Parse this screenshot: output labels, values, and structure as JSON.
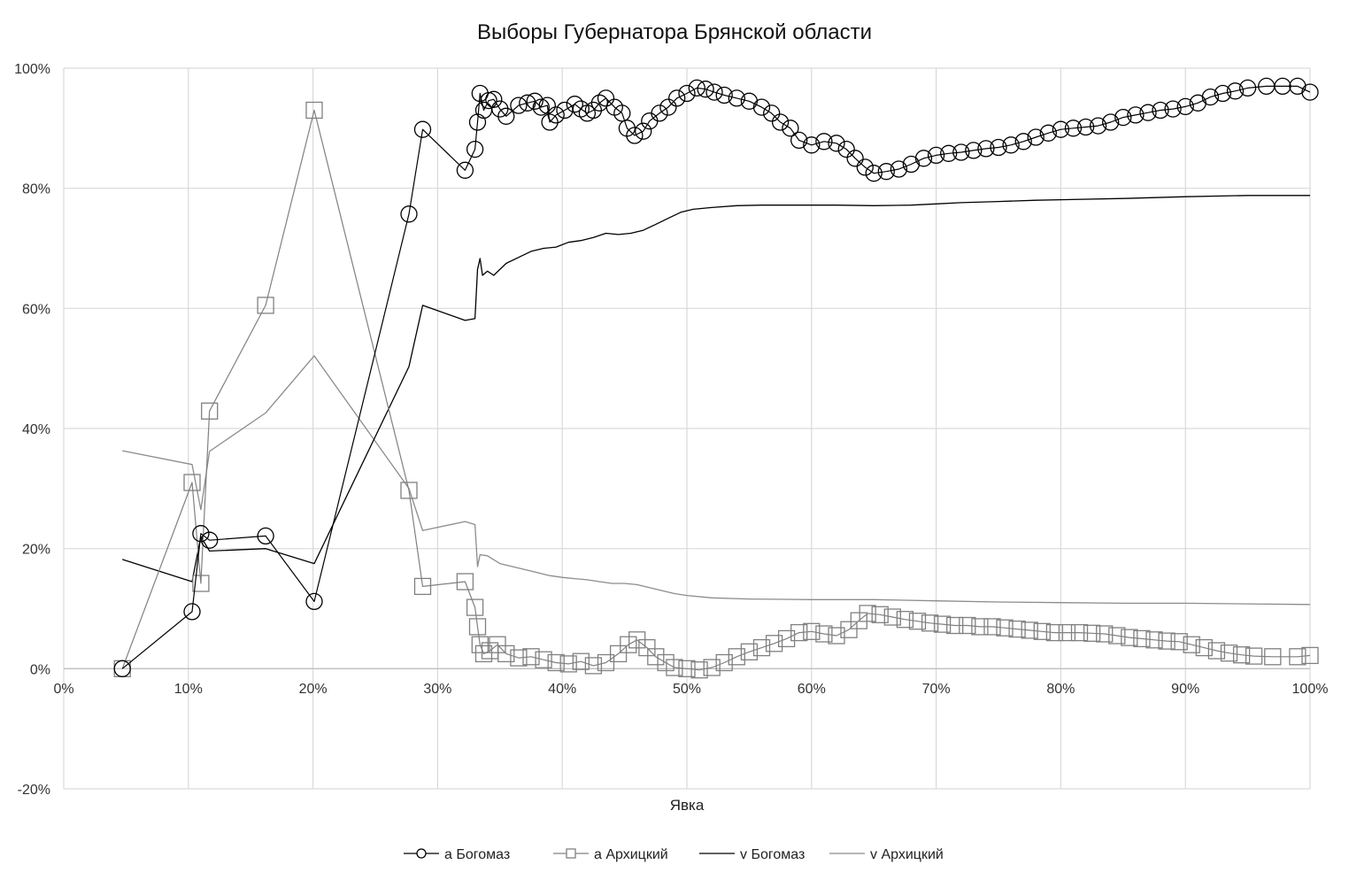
{
  "chart_data": {
    "type": "scatter",
    "title": "Выборы Губернатора Брянской области",
    "xlabel": "Явка",
    "ylabel": "",
    "xlim": [
      0,
      100
    ],
    "ylim": [
      -20,
      100
    ],
    "grid": true,
    "legend_position": "bottom",
    "x_ticks": [
      "0%",
      "10%",
      "20%",
      "30%",
      "40%",
      "50%",
      "60%",
      "70%",
      "80%",
      "90%",
      "100%"
    ],
    "y_ticks": [
      "-20%",
      "0%",
      "20%",
      "40%",
      "60%",
      "80%",
      "100%"
    ],
    "colors": {
      "black": "#000000",
      "gray": "#808080",
      "light_gray": "#8c8c8c",
      "grid": "#d9d9d9"
    },
    "series": [
      {
        "name": "а Богомаз",
        "marker": "circle",
        "color": "#000000",
        "points": [
          [
            4.7,
            0
          ],
          [
            10.3,
            9.5
          ],
          [
            11.0,
            22.5
          ],
          [
            11.7,
            21.4
          ],
          [
            16.2,
            22.1
          ],
          [
            20.1,
            11.2
          ],
          [
            27.7,
            75.7
          ],
          [
            28.8,
            89.8
          ],
          [
            32.2,
            83.0
          ],
          [
            33.0,
            86.5
          ],
          [
            33.2,
            91.0
          ],
          [
            33.4,
            95.8
          ],
          [
            33.7,
            93.0
          ],
          [
            34.1,
            94.6
          ],
          [
            34.5,
            94.8
          ],
          [
            35.0,
            93.2
          ],
          [
            35.5,
            92.0
          ],
          [
            36.5,
            93.8
          ],
          [
            37.2,
            94.2
          ],
          [
            37.8,
            94.5
          ],
          [
            38.3,
            93.5
          ],
          [
            38.8,
            93.8
          ],
          [
            39.0,
            91.0
          ],
          [
            39.5,
            92.2
          ],
          [
            40.2,
            93.0
          ],
          [
            41.0,
            94.0
          ],
          [
            41.5,
            93.2
          ],
          [
            42.0,
            92.5
          ],
          [
            42.5,
            93.0
          ],
          [
            43.0,
            94.2
          ],
          [
            43.5,
            95.0
          ],
          [
            44.2,
            93.5
          ],
          [
            44.8,
            92.5
          ],
          [
            45.2,
            90.0
          ],
          [
            45.8,
            88.8
          ],
          [
            46.5,
            89.5
          ],
          [
            47.0,
            91.2
          ],
          [
            47.8,
            92.5
          ],
          [
            48.5,
            93.5
          ],
          [
            49.2,
            95.0
          ],
          [
            50.0,
            95.8
          ],
          [
            50.8,
            96.7
          ],
          [
            51.5,
            96.5
          ],
          [
            52.2,
            96.0
          ],
          [
            53.0,
            95.5
          ],
          [
            54.0,
            95.0
          ],
          [
            55.0,
            94.5
          ],
          [
            56.0,
            93.5
          ],
          [
            56.8,
            92.5
          ],
          [
            57.5,
            91.0
          ],
          [
            58.3,
            90.0
          ],
          [
            59.0,
            88.0
          ],
          [
            60.0,
            87.2
          ],
          [
            61.0,
            87.8
          ],
          [
            62.0,
            87.5
          ],
          [
            62.8,
            86.5
          ],
          [
            63.5,
            85.0
          ],
          [
            64.3,
            83.5
          ],
          [
            65.0,
            82.5
          ],
          [
            66.0,
            82.8
          ],
          [
            67.0,
            83.2
          ],
          [
            68.0,
            84.0
          ],
          [
            69.0,
            85.0
          ],
          [
            70.0,
            85.5
          ],
          [
            71.0,
            85.8
          ],
          [
            72.0,
            86.0
          ],
          [
            73.0,
            86.3
          ],
          [
            74.0,
            86.6
          ],
          [
            75.0,
            86.8
          ],
          [
            76.0,
            87.2
          ],
          [
            77.0,
            87.8
          ],
          [
            78.0,
            88.5
          ],
          [
            79.0,
            89.2
          ],
          [
            80.0,
            89.8
          ],
          [
            81.0,
            90.0
          ],
          [
            82.0,
            90.2
          ],
          [
            83.0,
            90.4
          ],
          [
            84.0,
            91.0
          ],
          [
            85.0,
            91.8
          ],
          [
            86.0,
            92.2
          ],
          [
            87.0,
            92.6
          ],
          [
            88.0,
            93.0
          ],
          [
            89.0,
            93.2
          ],
          [
            90.0,
            93.6
          ],
          [
            91.0,
            94.2
          ],
          [
            92.0,
            95.2
          ],
          [
            93.0,
            95.8
          ],
          [
            94.0,
            96.2
          ],
          [
            95.0,
            96.7
          ],
          [
            96.5,
            97.0
          ],
          [
            97.8,
            97.0
          ],
          [
            99.0,
            97.0
          ],
          [
            100.0,
            96.0
          ]
        ]
      },
      {
        "name": "а Архицкий",
        "marker": "square",
        "color": "#808080",
        "points": [
          [
            4.7,
            0
          ],
          [
            10.3,
            31.0
          ],
          [
            11.0,
            14.2
          ],
          [
            11.7,
            42.9
          ],
          [
            16.2,
            60.5
          ],
          [
            20.1,
            93.0
          ],
          [
            27.7,
            29.7
          ],
          [
            28.8,
            13.7
          ],
          [
            32.2,
            14.5
          ],
          [
            33.0,
            10.2
          ],
          [
            33.2,
            7.0
          ],
          [
            33.4,
            4.0
          ],
          [
            33.7,
            2.5
          ],
          [
            34.2,
            3.0
          ],
          [
            34.8,
            4.0
          ],
          [
            35.5,
            2.5
          ],
          [
            36.5,
            1.8
          ],
          [
            37.5,
            2.0
          ],
          [
            38.5,
            1.5
          ],
          [
            39.5,
            1.0
          ],
          [
            40.5,
            0.8
          ],
          [
            41.5,
            1.2
          ],
          [
            42.5,
            0.5
          ],
          [
            43.5,
            1.0
          ],
          [
            44.5,
            2.5
          ],
          [
            45.3,
            4.0
          ],
          [
            46.0,
            4.8
          ],
          [
            46.8,
            3.5
          ],
          [
            47.5,
            2.0
          ],
          [
            48.3,
            1.0
          ],
          [
            49.0,
            0.2
          ],
          [
            50.0,
            0
          ],
          [
            51.0,
            -0.2
          ],
          [
            52.0,
            0.2
          ],
          [
            53.0,
            1.0
          ],
          [
            54.0,
            2.0
          ],
          [
            55.0,
            2.8
          ],
          [
            56.0,
            3.5
          ],
          [
            57.0,
            4.2
          ],
          [
            58.0,
            5.0
          ],
          [
            59.0,
            6.0
          ],
          [
            60.0,
            6.2
          ],
          [
            61.0,
            5.8
          ],
          [
            62.0,
            5.5
          ],
          [
            63.0,
            6.5
          ],
          [
            63.8,
            8.0
          ],
          [
            64.5,
            9.2
          ],
          [
            65.5,
            9.0
          ],
          [
            66.5,
            8.6
          ],
          [
            67.5,
            8.2
          ],
          [
            68.5,
            7.9
          ],
          [
            69.5,
            7.6
          ],
          [
            70.5,
            7.4
          ],
          [
            71.5,
            7.2
          ],
          [
            72.5,
            7.2
          ],
          [
            73.5,
            7.0
          ],
          [
            74.5,
            7.0
          ],
          [
            75.5,
            6.8
          ],
          [
            76.5,
            6.6
          ],
          [
            77.5,
            6.4
          ],
          [
            78.5,
            6.2
          ],
          [
            79.5,
            6.0
          ],
          [
            80.5,
            6.0
          ],
          [
            81.5,
            6.0
          ],
          [
            82.5,
            5.9
          ],
          [
            83.5,
            5.8
          ],
          [
            84.5,
            5.5
          ],
          [
            85.5,
            5.2
          ],
          [
            86.5,
            5.0
          ],
          [
            87.5,
            4.8
          ],
          [
            88.5,
            4.6
          ],
          [
            89.5,
            4.5
          ],
          [
            90.5,
            4.0
          ],
          [
            91.5,
            3.5
          ],
          [
            92.5,
            3.0
          ],
          [
            93.5,
            2.6
          ],
          [
            94.5,
            2.3
          ],
          [
            95.5,
            2.1
          ],
          [
            97.0,
            2.0
          ],
          [
            99.0,
            2.0
          ],
          [
            100.0,
            2.2
          ]
        ]
      },
      {
        "name": "v Богомаз",
        "marker": "none",
        "color": "#000000",
        "points": [
          [
            4.7,
            18.2
          ],
          [
            10.3,
            14.5
          ],
          [
            11.0,
            22.0
          ],
          [
            11.7,
            19.6
          ],
          [
            16.2,
            20.0
          ],
          [
            20.1,
            17.5
          ],
          [
            27.7,
            50.3
          ],
          [
            28.8,
            60.5
          ],
          [
            32.2,
            58.0
          ],
          [
            33.0,
            58.3
          ],
          [
            33.2,
            66.5
          ],
          [
            33.4,
            68.3
          ],
          [
            33.6,
            65.5
          ],
          [
            34.0,
            66.2
          ],
          [
            34.5,
            65.5
          ],
          [
            35.5,
            67.5
          ],
          [
            36.5,
            68.5
          ],
          [
            37.5,
            69.5
          ],
          [
            38.5,
            70.0
          ],
          [
            39.5,
            70.2
          ],
          [
            40.5,
            71.0
          ],
          [
            41.5,
            71.3
          ],
          [
            42.5,
            71.8
          ],
          [
            43.5,
            72.5
          ],
          [
            44.5,
            72.3
          ],
          [
            45.5,
            72.5
          ],
          [
            46.5,
            73.0
          ],
          [
            47.5,
            74.0
          ],
          [
            48.5,
            75.0
          ],
          [
            49.5,
            76.0
          ],
          [
            50.5,
            76.5
          ],
          [
            52.0,
            76.8
          ],
          [
            54.0,
            77.1
          ],
          [
            56.0,
            77.2
          ],
          [
            58.0,
            77.2
          ],
          [
            60.0,
            77.2
          ],
          [
            62.0,
            77.2
          ],
          [
            65.0,
            77.1
          ],
          [
            68.0,
            77.2
          ],
          [
            70.0,
            77.4
          ],
          [
            72.0,
            77.6
          ],
          [
            75.0,
            77.8
          ],
          [
            78.0,
            78.0
          ],
          [
            80.0,
            78.1
          ],
          [
            85.0,
            78.3
          ],
          [
            90.0,
            78.6
          ],
          [
            95.0,
            78.8
          ],
          [
            100.0,
            78.8
          ]
        ]
      },
      {
        "name": "v Архицкий",
        "marker": "none",
        "color": "#8c8c8c",
        "points": [
          [
            4.7,
            36.3
          ],
          [
            10.3,
            34.0
          ],
          [
            11.0,
            26.5
          ],
          [
            11.7,
            36.2
          ],
          [
            16.2,
            42.6
          ],
          [
            20.1,
            52.1
          ],
          [
            27.7,
            30.0
          ],
          [
            28.8,
            23.0
          ],
          [
            32.2,
            24.5
          ],
          [
            33.0,
            24.0
          ],
          [
            33.2,
            17.0
          ],
          [
            33.4,
            19.0
          ],
          [
            34.0,
            18.8
          ],
          [
            35.0,
            17.5
          ],
          [
            36.0,
            17.0
          ],
          [
            37.0,
            16.5
          ],
          [
            38.0,
            16.0
          ],
          [
            39.0,
            15.5
          ],
          [
            40.0,
            15.2
          ],
          [
            41.0,
            15.0
          ],
          [
            42.0,
            14.8
          ],
          [
            43.0,
            14.5
          ],
          [
            44.0,
            14.2
          ],
          [
            45.0,
            14.2
          ],
          [
            46.0,
            14.0
          ],
          [
            47.0,
            13.5
          ],
          [
            48.0,
            13.0
          ],
          [
            49.0,
            12.5
          ],
          [
            50.0,
            12.2
          ],
          [
            52.0,
            11.8
          ],
          [
            55.0,
            11.6
          ],
          [
            60.0,
            11.5
          ],
          [
            65.0,
            11.5
          ],
          [
            70.0,
            11.3
          ],
          [
            75.0,
            11.1
          ],
          [
            80.0,
            11.0
          ],
          [
            85.0,
            10.9
          ],
          [
            90.0,
            10.9
          ],
          [
            95.0,
            10.8
          ],
          [
            100.0,
            10.7
          ]
        ]
      }
    ]
  }
}
